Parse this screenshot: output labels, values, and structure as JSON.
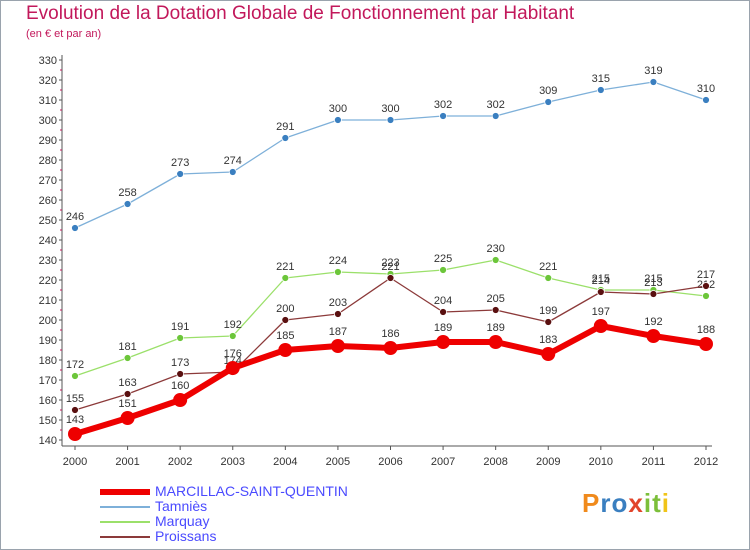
{
  "title": "Evolution de la Dotation Globale de Fonctionnement par Habitant",
  "subtitle": "(en € et par an)",
  "logo": {
    "letters": [
      {
        "ch": "P",
        "color": "#f08a1c"
      },
      {
        "ch": "r",
        "color": "#3a7fc0"
      },
      {
        "ch": "o",
        "color": "#3a7fc0"
      },
      {
        "ch": "x",
        "color": "#e2452b"
      },
      {
        "ch": "i",
        "color": "#7cbf3a"
      },
      {
        "ch": "t",
        "color": "#7cbf3a"
      },
      {
        "ch": "i",
        "color": "#f0c419"
      }
    ]
  },
  "chart_data": {
    "type": "line",
    "title": "Evolution de la Dotation Globale de Fonctionnement par Habitant",
    "subtitle": "(en € et par an)",
    "x": [
      "2000",
      "2001",
      "2002",
      "2003",
      "2004",
      "2005",
      "2006",
      "2007",
      "2008",
      "2009",
      "2010",
      "2011",
      "2012"
    ],
    "ylim": [
      140,
      330
    ],
    "yticks": [
      140,
      150,
      160,
      170,
      180,
      190,
      200,
      210,
      220,
      230,
      240,
      250,
      260,
      270,
      280,
      290,
      300,
      310,
      320,
      330
    ],
    "grid": false,
    "legend_position": "bottom-left",
    "series": [
      {
        "name": "MARCILLAC-SAINT-QUENTIN",
        "color": "#ee0000",
        "point_color": "#ee0000",
        "line_width": 6,
        "marker_r": 7,
        "values": [
          143,
          151,
          160,
          176,
          185,
          187,
          186,
          189,
          189,
          183,
          197,
          192,
          188
        ]
      },
      {
        "name": "Tamniès",
        "color": "#7eb0d9",
        "point_color": "#3a7fc0",
        "line_width": 1.3,
        "marker_r": 3.5,
        "values": [
          246,
          258,
          273,
          274,
          291,
          300,
          300,
          302,
          302,
          309,
          315,
          319,
          310
        ]
      },
      {
        "name": "Marquay",
        "color": "#9be06a",
        "point_color": "#6cc63a",
        "line_width": 1.3,
        "marker_r": 3.5,
        "values": [
          172,
          181,
          191,
          192,
          221,
          224,
          223,
          225,
          230,
          221,
          215,
          215,
          212
        ]
      },
      {
        "name": "Proissans",
        "color": "#8c3a3a",
        "point_color": "#5a1010",
        "line_width": 1.3,
        "marker_r": 3.5,
        "values": [
          155,
          163,
          173,
          174,
          200,
          203,
          221,
          204,
          205,
          199,
          214,
          213,
          217
        ]
      }
    ]
  }
}
